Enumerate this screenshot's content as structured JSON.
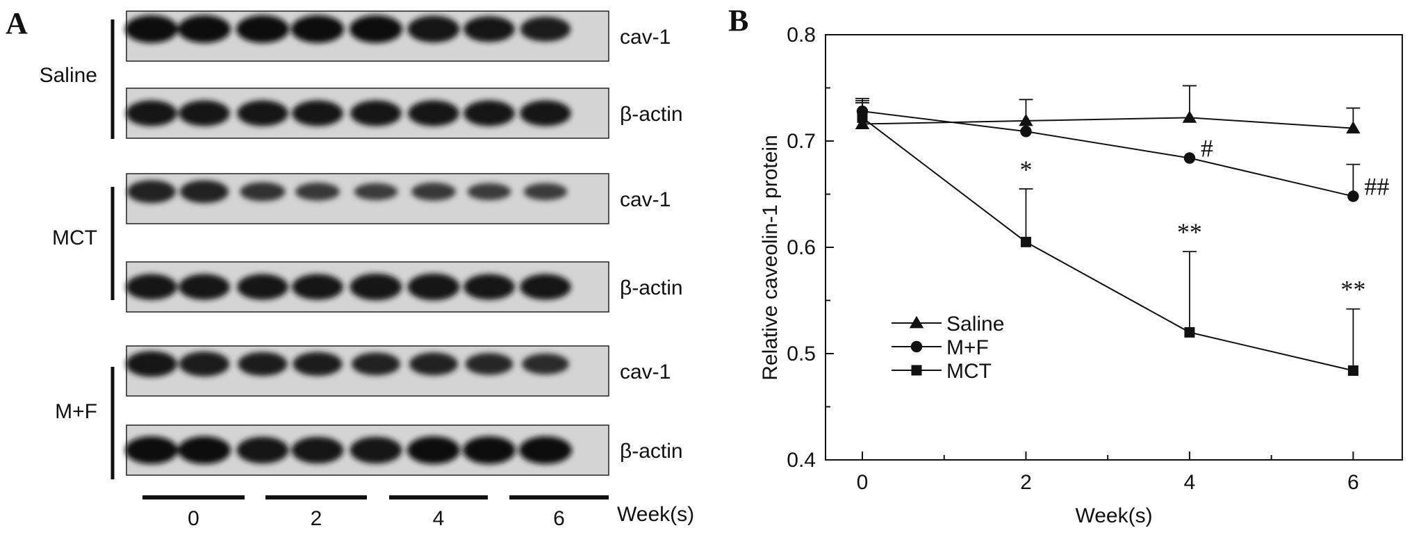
{
  "panel_a": {
    "letter": "A",
    "groups": [
      {
        "name": "Saline",
        "cav_strength": [
          1,
          1,
          1,
          1,
          1,
          0.95,
          0.9,
          0.85
        ],
        "actin_strength": [
          0.9,
          0.9,
          0.9,
          0.9,
          0.9,
          0.9,
          0.9,
          0.9
        ]
      },
      {
        "name": "MCT",
        "cav_strength": [
          0.75,
          0.75,
          0.55,
          0.5,
          0.45,
          0.5,
          0.45,
          0.45
        ],
        "actin_strength": [
          0.9,
          0.9,
          0.9,
          0.9,
          0.95,
          0.95,
          0.9,
          0.9
        ]
      },
      {
        "name": "M+F",
        "cav_strength": [
          0.9,
          0.85,
          0.8,
          0.8,
          0.75,
          0.75,
          0.7,
          0.65
        ],
        "actin_strength": [
          1,
          1,
          0.95,
          0.95,
          0.95,
          1,
          1,
          1
        ]
      }
    ],
    "band_labels": {
      "cav": "cav-1",
      "actin": "β-actin"
    },
    "weeks": [
      "0",
      "2",
      "4",
      "6"
    ],
    "week_axis_label": "Week(s)"
  },
  "chart_data": {
    "type": "line",
    "panel_letter": "B",
    "x": [
      0,
      2,
      4,
      6
    ],
    "xlabel": "Week(s)",
    "ylabel": "Relative caveolin-1 protein",
    "xlim": [
      -0.45,
      6.6
    ],
    "ylim": [
      0.4,
      0.8
    ],
    "xticks": [
      "0",
      "2",
      "4",
      "6"
    ],
    "yticks": [
      "0.4",
      "0.5",
      "0.6",
      "0.7",
      "0.8"
    ],
    "legend_position": "lower-left",
    "series": [
      {
        "name": "Saline",
        "marker": "triangle",
        "values": [
          0.716,
          0.719,
          0.722,
          0.712
        ],
        "errors": [
          0.022,
          0.02,
          0.03,
          0.019
        ]
      },
      {
        "name": "M+F",
        "marker": "circle",
        "values": [
          0.728,
          0.709,
          0.684,
          0.648
        ],
        "errors": [
          0.012,
          0.0,
          0.0,
          0.03
        ]
      },
      {
        "name": "MCT",
        "marker": "square",
        "values": [
          0.722,
          0.605,
          0.52,
          0.484
        ],
        "errors": [
          0.014,
          0.05,
          0.076,
          0.058
        ]
      }
    ],
    "annotations": [
      {
        "series": "MCT",
        "x": 2,
        "text": "*"
      },
      {
        "series": "MCT",
        "x": 4,
        "text": "**"
      },
      {
        "series": "MCT",
        "x": 6,
        "text": "**"
      },
      {
        "series": "M+F",
        "x": 4,
        "text": "#"
      },
      {
        "series": "M+F",
        "x": 6,
        "text": "##"
      }
    ]
  }
}
